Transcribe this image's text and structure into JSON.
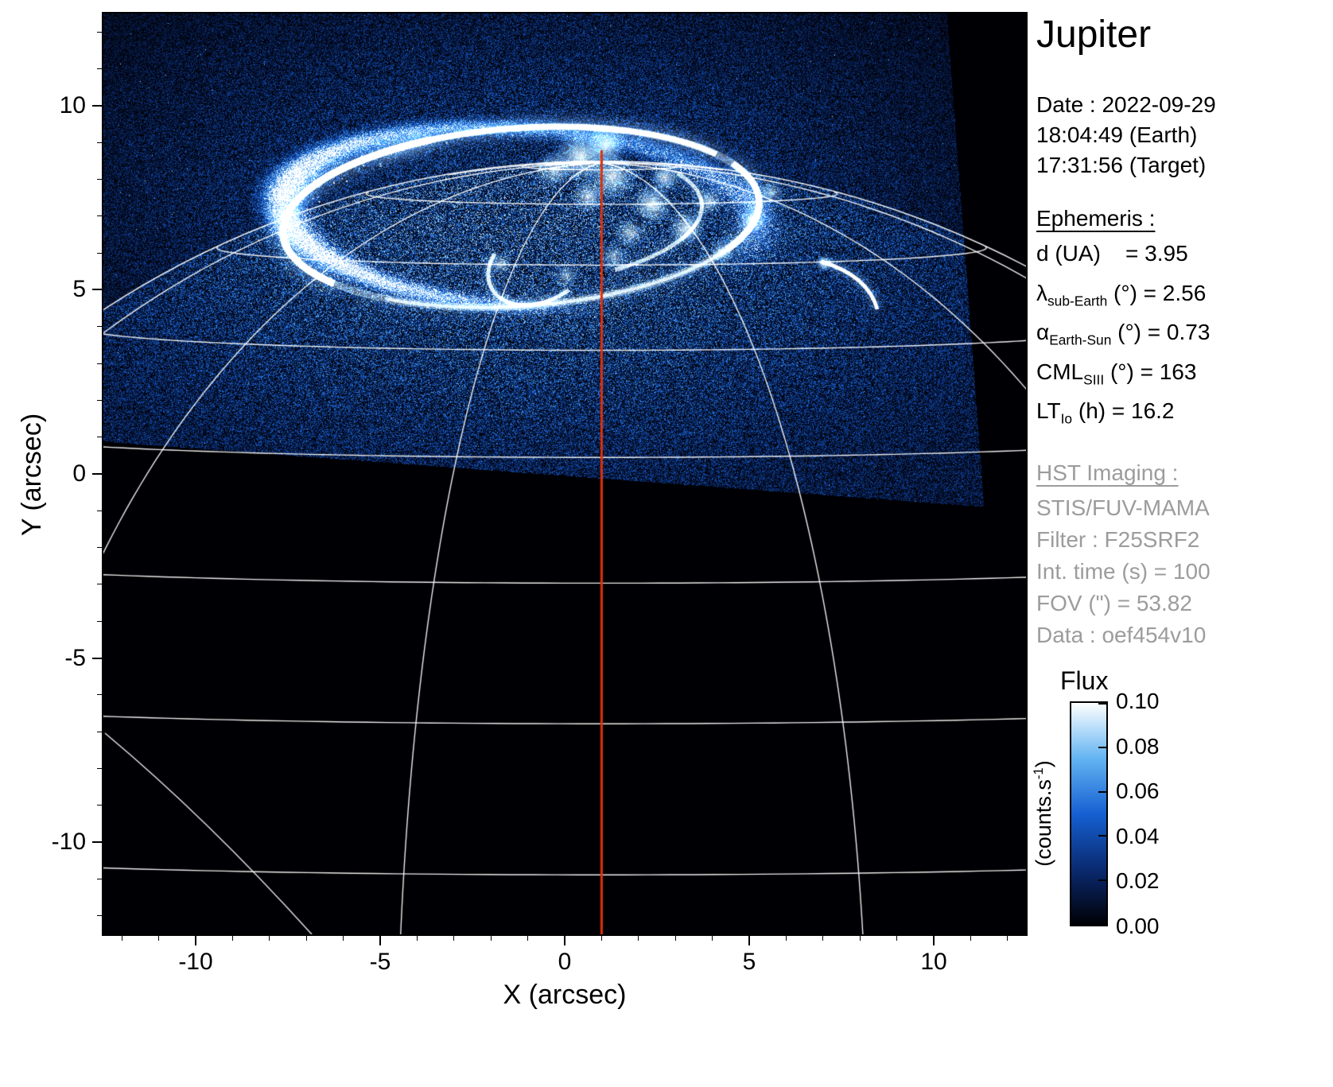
{
  "title": "Jupiter",
  "info": {
    "date": "Date : 2022-09-29",
    "time_earth": "18:04:49 (Earth)",
    "time_target": "17:31:56 (Target)",
    "ephemeris_heading": "Ephemeris :",
    "ephemeris": {
      "rows": [
        {
          "pre": "d (UA)",
          "sub": "",
          "post": "    = 3.95"
        },
        {
          "pre": "λ",
          "sub": "sub-Earth",
          "post": " (°) = 2.56"
        },
        {
          "pre": "α",
          "sub": "Earth-Sun",
          "post": " (°) = 0.73"
        },
        {
          "pre": "CML",
          "sub": "SIII",
          "post": " (°) = 163"
        },
        {
          "pre": "LT",
          "sub": "Io",
          "post": " (h) = 16.2"
        }
      ]
    },
    "hst_heading": "HST Imaging :",
    "hst_rows": [
      "STIS/FUV-MAMA",
      "Filter : F25SRF2",
      "Int. time (s) = 100",
      "FOV (\") = 53.82",
      "Data : oef454v10"
    ]
  },
  "chart_data": {
    "type": "heatmap",
    "title": "Jupiter",
    "xlabel": "X (arcsec)",
    "ylabel": "Y (arcsec)",
    "xlim": [
      -12.5,
      12.5
    ],
    "ylim": [
      -12.5,
      12.5
    ],
    "xticks": [
      -10,
      -5,
      0,
      5,
      10
    ],
    "yticks": [
      -10,
      -5,
      0,
      5,
      10
    ],
    "grid": false,
    "description": "HST/STIS far-UV image of Jupiter's northern aurora: bright auroral oval with patchy inner emission and Io footprint arc on a speckled blue detector background; planetary latitude/longitude graticule and limb drawn in white; central meridian drawn in red.",
    "colorbar": {
      "title": "Flux",
      "unit_pre": "(counts.s",
      "unit_sup": "-1",
      "unit_post": ")",
      "ticks": [
        "0.10",
        "0.08",
        "0.06",
        "0.04",
        "0.02",
        "0.00"
      ],
      "min": 0,
      "max": 0.1
    },
    "colormap_stops": [
      [
        0,
        "#000004"
      ],
      [
        0.25,
        "#0a2a70"
      ],
      [
        0.5,
        "#1560d2"
      ],
      [
        0.75,
        "#63b4f2"
      ],
      [
        1,
        "#ffffff"
      ]
    ],
    "overlays": {
      "graticule": {
        "color": "#ffffff",
        "sub_earth_latitude_deg": 2.56,
        "planet_center_arcsec": [
          1.0,
          -16.2
        ],
        "planet_radius_arcsec": 24.67,
        "parallels_deg": [
          15,
          25,
          35,
          45,
          55,
          65,
          75,
          85
        ],
        "meridians_cml_offset_deg": [
          -103,
          -73,
          -43,
          -13,
          17,
          47,
          77,
          107
        ]
      },
      "central_meridian": {
        "color": "#e03008",
        "x_arcsec": 1.0
      },
      "aurora_oval": {
        "center_arcsec": [
          -1.2,
          7.0
        ],
        "semi_axes_arcsec": [
          6.5,
          2.4
        ],
        "rotation_deg": -4,
        "features": [
          "main oval",
          "patchy polar emission",
          "dawn storm swirl",
          "Io footprint trail"
        ]
      },
      "image_footprint": {
        "rotation_deg": 4.2
      }
    }
  }
}
